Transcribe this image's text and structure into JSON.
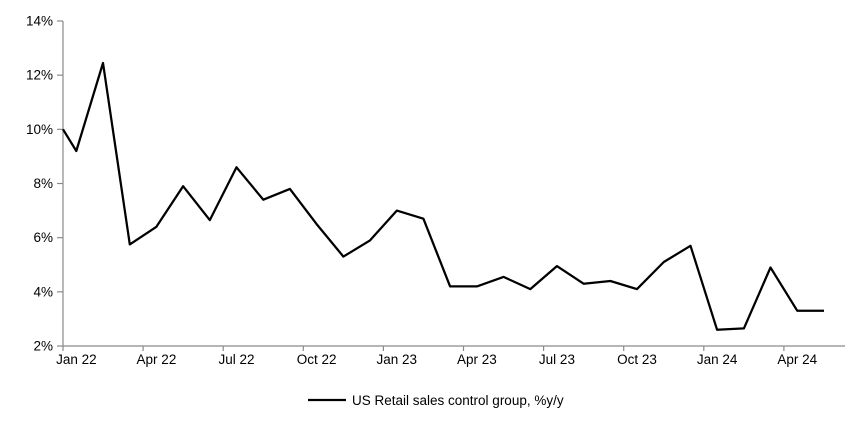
{
  "chart_data": {
    "type": "line",
    "title": "",
    "xlabel": "",
    "ylabel": "",
    "categories": [
      "Jan 22",
      "Feb 22",
      "Mar 22",
      "Apr 22",
      "May 22",
      "Jun 22",
      "Jul 22",
      "Aug 22",
      "Sep 22",
      "Oct 22",
      "Nov 22",
      "Dec 22",
      "Jan 23",
      "Feb 23",
      "Mar 23",
      "Apr 23",
      "May 23",
      "Jun 23",
      "Jul 23",
      "Aug 23",
      "Sep 23",
      "Oct 23",
      "Nov 23",
      "Dec 23",
      "Jan 24",
      "Feb 24",
      "Mar 24",
      "Apr 24",
      "May 24"
    ],
    "series": [
      {
        "name": "US Retail sales control group, %y/y",
        "color": "#000000",
        "values": [
          9.2,
          12.45,
          5.75,
          6.4,
          7.9,
          6.65,
          8.6,
          7.4,
          7.8,
          6.5,
          5.3,
          5.9,
          7.0,
          6.7,
          4.2,
          4.2,
          4.55,
          4.1,
          4.95,
          4.3,
          4.4,
          4.1,
          5.1,
          5.7,
          2.6,
          2.65,
          4.9,
          3.3,
          3.3
        ]
      }
    ],
    "clipped_start_value_at_left_axis": 10.0,
    "ylim": [
      2,
      14
    ],
    "y_tick_step": 2,
    "y_tick_labels": [
      "2%",
      "4%",
      "6%",
      "8%",
      "10%",
      "12%",
      "14%"
    ],
    "x_tick_labels": [
      "Jan 22",
      "Apr 22",
      "Jul 22",
      "Oct 22",
      "Jan 23",
      "Apr 23",
      "Jul 23",
      "Oct 23",
      "Jan 24",
      "Apr 24"
    ],
    "x_tick_label_every_months": 3,
    "grid": false,
    "legend_position": "bottom-center",
    "legend_label": "US Retail sales control group, %y/y",
    "axis_color": "#8a8a8a",
    "text_color": "#000000",
    "background_color": "#ffffff"
  }
}
